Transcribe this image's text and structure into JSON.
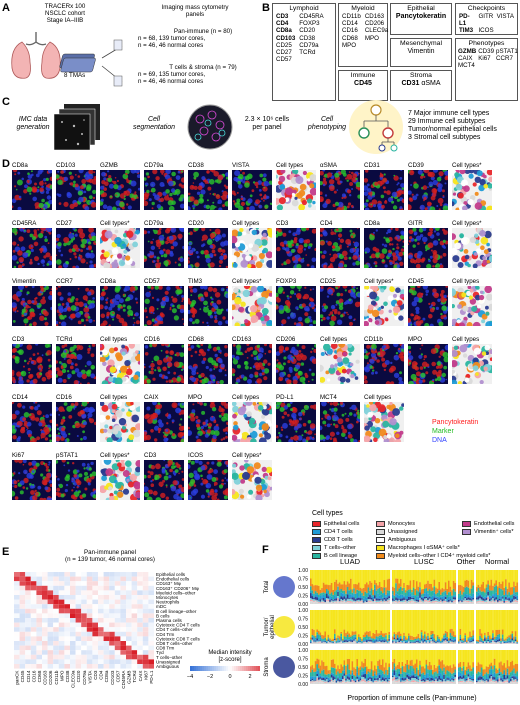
{
  "panelA": {
    "letter": "A",
    "cohort": [
      "TRACERx 100",
      "NSCLC cohort",
      "Stage IA–IIIB"
    ],
    "tmas": "8 TMAs",
    "imaging_title": [
      "Imaging mass cytometry",
      "panels"
    ],
    "pan": {
      "title": "Pan-immune (n = 80)",
      "l1": "n = 68, 139 tumor cores,",
      "l2": "n = 46, 46 normal cores"
    },
    "tcell": {
      "title": "T cells & stroma (n = 79)",
      "l1": "n = 69, 135 tumor cores,",
      "l2": "n = 46, 46 normal cores"
    }
  },
  "panelB": {
    "letter": "B",
    "lymphoid": {
      "title": "Lymphoid",
      "col1": [
        "CD3",
        "CD4",
        "CD8a",
        "CD103",
        "CD25",
        "CD27",
        "CD57"
      ],
      "col2": [
        "CD45RA",
        "FOXP3",
        "CD20",
        "CD38",
        "CD79a",
        "TCRd"
      ]
    },
    "myeloid": {
      "title": "Myeloid",
      "col1": [
        "CD11b",
        "CD14",
        "CD16",
        "CD68",
        "MPO"
      ],
      "col2": [
        "CD163",
        "CD206",
        "CLEC9a",
        "MPO"
      ]
    },
    "immune": {
      "title": "Immune",
      "value": "CD45"
    },
    "epithelial": {
      "title": "Epithelial",
      "value": "Pancytokeratin"
    },
    "mesenchymal": {
      "title": "Mesenchymal",
      "value": "Vimentin"
    },
    "stroma": {
      "title": "Stroma",
      "value1": "CD31",
      "value2": "αSMA"
    },
    "checkpoints": {
      "title": "Checkpoints",
      "items": [
        "PD-L1",
        "GITR",
        "VISTA",
        "TIM3",
        "ICOS"
      ]
    },
    "phenotypes": {
      "title": "Phenotypes",
      "items": [
        "GZMB",
        "CD39",
        "pSTAT1",
        "CAIX",
        "Ki67",
        "CCR7",
        "MCT4"
      ]
    }
  },
  "panelC": {
    "letter": "C",
    "step1": [
      "IMC data",
      "generation"
    ],
    "step2": [
      "Cell",
      "segmentation"
    ],
    "count": [
      "2.3 × 10⁶ cells",
      "per panel"
    ],
    "step3": [
      "Cell",
      "phenotyping"
    ],
    "results": [
      "7 Major immune cell types",
      "29 Immune cell subtypes",
      "Tumor/normal epithelial cells",
      "3 Stromal cell subtypes"
    ]
  },
  "panelD": {
    "letter": "D",
    "rows": [
      [
        "CD8a",
        "CD103",
        "GZMB",
        "CD79a",
        "CD38",
        "VISTA",
        "Cell types",
        "αSMA",
        "CD31",
        "CD39",
        "Cell types*"
      ],
      [
        "CD45RA",
        "CD27",
        "Cell types*",
        "CD79a",
        "CD20",
        "Cell types",
        "CD3",
        "CD4",
        "CD8a",
        "GITR",
        "Cell types*"
      ],
      [
        "Vimentin",
        "CCR7",
        "CD8a",
        "CD57",
        "TIM3",
        "Cell types*",
        "FOXP3",
        "CD25",
        "Cell types*",
        "CD45",
        "Cell types"
      ],
      [
        "CD3",
        "TCRd",
        "Cell types",
        "CD16",
        "CD68",
        "CD163",
        "CD206",
        "Cell types",
        "CD11b",
        "MPO",
        "Cell types"
      ],
      [
        "CD14",
        "CD16",
        "Cell types",
        "CAIX",
        "MPO",
        "Cell types",
        "PD-L1",
        "MCT4",
        "Cell types"
      ],
      [
        "Ki67",
        "pSTAT1",
        "Cell types*",
        "CD3",
        "ICOS",
        "Cell types*"
      ]
    ],
    "channel_legend": [
      {
        "label": "Pancytokeratin",
        "color": "#ff2020"
      },
      {
        "label": "Marker",
        "color": "#22bb22"
      },
      {
        "label": "DNA",
        "color": "#3344ff"
      }
    ],
    "celltypes_title": "Cell types",
    "celltypes": [
      {
        "label": "Epithelial cells",
        "color": "#e8262b"
      },
      {
        "label": "CD4 T cells",
        "color": "#1f9bd6"
      },
      {
        "label": "CD8 T cells",
        "color": "#2a3b8f"
      },
      {
        "label": "T cells–other",
        "color": "#7fd1d9"
      },
      {
        "label": "B cell lineage",
        "color": "#2ab5a0"
      },
      {
        "label": "Monocytes",
        "color": "#f4a3a8"
      },
      {
        "label": "Unassigned",
        "color": "#d9d9d9"
      },
      {
        "label": "Ambiguous",
        "color": "#ffffff"
      },
      {
        "label": "Macrophages I αSMA⁺ cells*",
        "color": "#f6e51e"
      },
      {
        "label": "Myeloid cells–other I CD4⁺ myeloid cells*",
        "color": "#f08a1c"
      },
      {
        "label": "Endothelial cells",
        "color": "#c23b8a"
      },
      {
        "label": "Vimentin⁺ cells*",
        "color": "#b18fcf"
      }
    ]
  },
  "panelE": {
    "letter": "E",
    "title": "Pan-immune panel",
    "subtitle": "(n = 139 tumor, 46 normal cores)",
    "rows": [
      "Epithelial cells",
      "Endothelial cells",
      "CD163⁺ Mφ",
      "CD163⁺ CD206⁺ Mφ",
      "Myeloid cells–other",
      "Monocytes",
      "Neutrophils",
      "mDC",
      "B cell lineage–other",
      "B cells",
      "Plasma cells",
      "Cytotoxic CD4 T cells",
      "CD4 T cells–other",
      "CD4 Trm",
      "Cytotoxic CD8 T cells",
      "CD8 T cells–other",
      "CD8 Trm",
      "Tγd",
      "T cells–other",
      "Unassigned",
      "Ambiguous"
    ],
    "cols": [
      "panCK",
      "CD45",
      "CD14",
      "CD16",
      "CD68",
      "CD163",
      "CD206",
      "CD11b",
      "MPO",
      "CD38",
      "CLEC9a",
      "CD20",
      "CD79a",
      "VISTA",
      "CD3",
      "CD4",
      "CD8a",
      "CD103",
      "CD57",
      "CD45RA",
      "GZMB",
      "TCRd",
      "CAIX",
      "Ki67",
      "PD-L1"
    ],
    "legend_title": [
      "Median intensity",
      "[z-score]"
    ],
    "legend_ticks": [
      "−4",
      "−2",
      "0",
      "2",
      "4"
    ]
  },
  "panelF": {
    "letter": "F",
    "groups": [
      "LUAD",
      "LUSC",
      "Other",
      "Normal"
    ],
    "rows": [
      "Total",
      "Tumor/ epithelial",
      "Stroma"
    ],
    "yticks": [
      "1.00",
      "0.75",
      "0.50",
      "0.25",
      "0.00"
    ],
    "xlabel": "Proportion of immune cells (Pan-immune)"
  }
}
